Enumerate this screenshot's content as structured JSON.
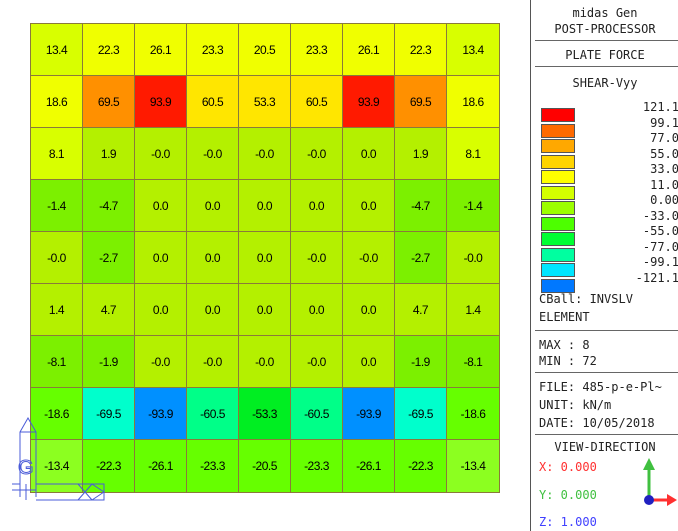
{
  "panel": {
    "app": "midas Gen",
    "processor": "POST-PROCESSOR",
    "result": "PLATE FORCE",
    "component": "SHEAR-Vyy",
    "legend": [
      {
        "label": "121.1",
        "color": "#ff0000"
      },
      {
        "label": "99.1",
        "color": "#ff6a00"
      },
      {
        "label": "77.0",
        "color": "#ffa800"
      },
      {
        "label": "55.0",
        "color": "#ffd400"
      },
      {
        "label": "33.0",
        "color": "#ffff00"
      },
      {
        "label": "11.0",
        "color": "#d4ff00"
      },
      {
        "label": "0.00",
        "color": "#9cff00"
      },
      {
        "label": "-33.0",
        "color": "#4dff00"
      },
      {
        "label": "-55.0",
        "color": "#00ff33"
      },
      {
        "label": "-77.0",
        "color": "#00ffa0"
      },
      {
        "label": "-99.1",
        "color": "#00e6ff"
      },
      {
        "label": "-121.1",
        "color": "#0078ff"
      }
    ],
    "cball": "CBall: INVSLV",
    "element": "ELEMENT",
    "max": "MAX : 8",
    "min": "MIN : 72",
    "file": "FILE: 485-p-e-Pl~",
    "unit": "UNIT: kN/m",
    "date": "DATE: 10/05/2018",
    "view_title": "VIEW-DIRECTION",
    "view_x": "X: 0.000",
    "view_y": "Y: 0.000",
    "view_z": "Z: 1.000",
    "colors": {
      "x": "#ff3030",
      "y": "#40e040",
      "z": "#4040ff"
    }
  },
  "grid": {
    "rows": [
      [
        "13.4",
        "22.3",
        "26.1",
        "23.3",
        "20.5",
        "23.3",
        "26.1",
        "22.3",
        "13.4"
      ],
      [
        "18.6",
        "69.5",
        "93.9",
        "60.5",
        "53.3",
        "60.5",
        "93.9",
        "69.5",
        "18.6"
      ],
      [
        "8.1",
        "1.9",
        "-0.0",
        "-0.0",
        "-0.0",
        "-0.0",
        "0.0",
        "1.9",
        "8.1"
      ],
      [
        "-1.4",
        "-4.7",
        "0.0",
        "0.0",
        "0.0",
        "0.0",
        "0.0",
        "-4.7",
        "-1.4"
      ],
      [
        "-0.0",
        "-2.7",
        "0.0",
        "0.0",
        "0.0",
        "-0.0",
        "-0.0",
        "-2.7",
        "-0.0"
      ],
      [
        "1.4",
        "4.7",
        "0.0",
        "0.0",
        "0.0",
        "0.0",
        "0.0",
        "4.7",
        "1.4"
      ],
      [
        "-8.1",
        "-1.9",
        "-0.0",
        "-0.0",
        "-0.0",
        "-0.0",
        "0.0",
        "-1.9",
        "-8.1"
      ],
      [
        "-18.6",
        "-69.5",
        "-93.9",
        "-60.5",
        "-53.3",
        "-60.5",
        "-93.9",
        "-69.5",
        "-18.6"
      ],
      [
        "-13.4",
        "-22.3",
        "-26.1",
        "-23.3",
        "-20.5",
        "-23.3",
        "-26.1",
        "-22.3",
        "-13.4"
      ]
    ]
  }
}
